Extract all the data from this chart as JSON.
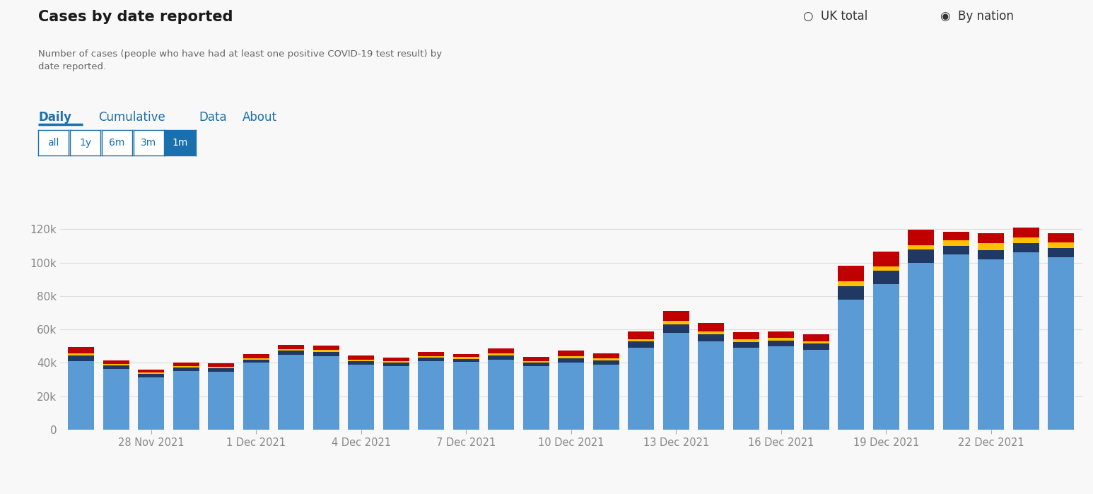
{
  "title": "Cases by date reported",
  "subtitle": "Number of cases (people who have had at least one positive COVID-19 test result) by\ndate reported.",
  "background_color": "#f8f8f8",
  "plot_bg_color": "#f8f8f8",
  "ylim": [
    0,
    130000
  ],
  "yticks": [
    0,
    20000,
    40000,
    60000,
    80000,
    100000,
    120000
  ],
  "ytick_labels": [
    "0",
    "20k",
    "40k",
    "60k",
    "80k",
    "100k",
    "120k"
  ],
  "colors": {
    "England": "#5b9bd5",
    "Scotland": "#1f3864",
    "Northern Ireland": "#ffc000",
    "Wales": "#c00000"
  },
  "xtick_labels": [
    "28 Nov 2021",
    "1 Dec 2021",
    "4 Dec 2021",
    "7 Dec 2021",
    "10 Dec 2021",
    "13 Dec 2021",
    "16 Dec 2021",
    "19 Dec 2021",
    "22 Dec 2021"
  ],
  "england": [
    41000,
    36500,
    31500,
    35000,
    34800,
    40000,
    45000,
    44000,
    39000,
    38000,
    41000,
    40500,
    42000,
    38000,
    40000,
    39000,
    49000,
    58000,
    53000,
    49000,
    50000,
    48000,
    78000,
    87000,
    100000,
    105000,
    102000,
    106000,
    103000
  ],
  "scotland": [
    3500,
    2000,
    2000,
    2200,
    2000,
    2000,
    2300,
    2500,
    2200,
    2000,
    2200,
    2000,
    2500,
    2200,
    2800,
    2500,
    3800,
    5000,
    4000,
    3500,
    3500,
    3500,
    8000,
    8000,
    8000,
    5000,
    5500,
    5500,
    5500
  ],
  "northern_ireland": [
    1200,
    900,
    900,
    1000,
    900,
    900,
    1100,
    1200,
    900,
    900,
    900,
    900,
    1100,
    1000,
    1200,
    1100,
    1500,
    2200,
    1800,
    1500,
    1500,
    1500,
    3000,
    2500,
    2500,
    3500,
    4000,
    3500,
    3500
  ],
  "wales": [
    3800,
    2000,
    1500,
    2000,
    2000,
    2200,
    2500,
    2800,
    2500,
    2200,
    2500,
    2000,
    3000,
    2500,
    3500,
    3000,
    4500,
    6000,
    5000,
    4500,
    4000,
    4000,
    9000,
    9000,
    9000,
    5000,
    6000,
    6000,
    5500
  ]
}
